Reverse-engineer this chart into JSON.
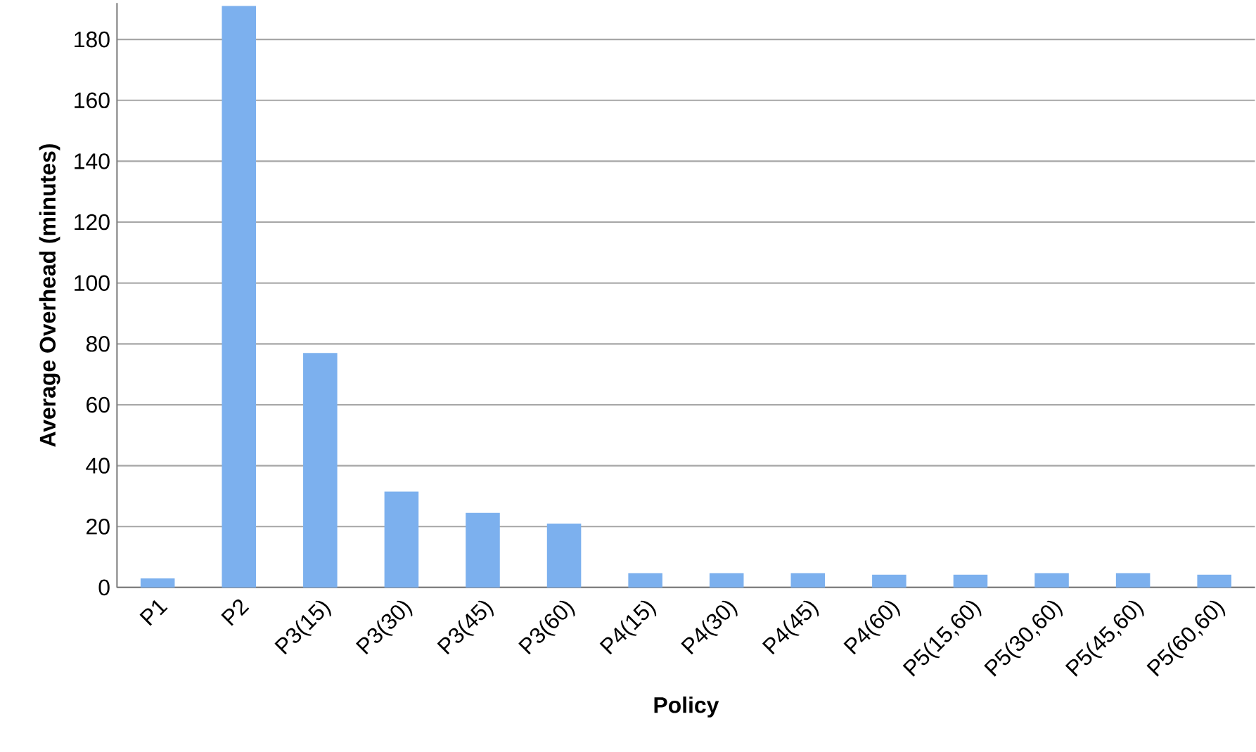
{
  "chart_data": {
    "type": "bar",
    "xlabel": "Policy",
    "ylabel": "Average Overhead (minutes)",
    "categories": [
      "P1",
      "P2",
      "P3(15)",
      "P3(30)",
      "P3(45)",
      "P3(60)",
      "P4(15)",
      "P4(30)",
      "P4(45)",
      "P4(60)",
      "P5(15,60)",
      "P5(30,60)",
      "P5(45,60)",
      "P5(60,60)"
    ],
    "values": [
      3,
      191,
      77,
      31.5,
      24.5,
      21,
      4.7,
      4.7,
      4.7,
      4.2,
      4.2,
      4.7,
      4.7,
      4.2
    ],
    "color": "#7cb0ee",
    "ylim": [
      0,
      192
    ],
    "yticks": [
      0,
      20,
      40,
      60,
      80,
      100,
      120,
      140,
      160,
      180
    ],
    "grid": "y"
  }
}
